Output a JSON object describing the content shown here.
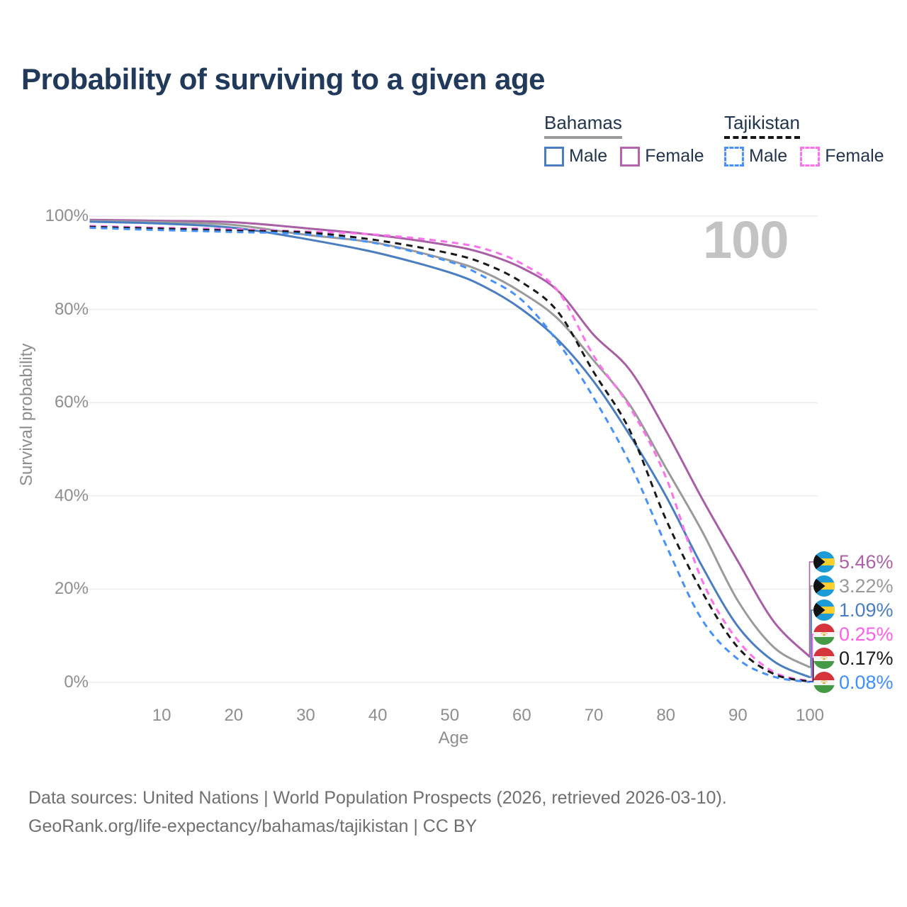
{
  "title": "Probability of surviving to a given age",
  "legend": {
    "groups": [
      {
        "name": "Bahamas",
        "line_style": "solid",
        "underline_color": "#9b9b9b",
        "items": [
          {
            "label": "Male",
            "color": "#4a7ec0"
          },
          {
            "label": "Female",
            "color": "#b264ac"
          }
        ]
      },
      {
        "name": "Tajikistan",
        "line_style": "dashed",
        "underline_color": "#161616",
        "items": [
          {
            "label": "Male",
            "color": "#4791fa"
          },
          {
            "label": "Female",
            "color": "#ff70ee"
          }
        ]
      }
    ]
  },
  "axes": {
    "y_title": "Survival probability",
    "x_title": "Age",
    "y_ticks": [
      {
        "label": "0%",
        "value": 0
      },
      {
        "label": "20%",
        "value": 20
      },
      {
        "label": "40%",
        "value": 40
      },
      {
        "label": "60%",
        "value": 60
      },
      {
        "label": "80%",
        "value": 80
      },
      {
        "label": "100%",
        "value": 100
      }
    ],
    "x_ticks": [
      {
        "label": "10",
        "value": 10
      },
      {
        "label": "20",
        "value": 20
      },
      {
        "label": "30",
        "value": 30
      },
      {
        "label": "40",
        "value": 40
      },
      {
        "label": "50",
        "value": 50
      },
      {
        "label": "60",
        "value": 60
      },
      {
        "label": "70",
        "value": 70
      },
      {
        "label": "80",
        "value": 80
      },
      {
        "label": "90",
        "value": 90
      },
      {
        "label": "100",
        "value": 100
      }
    ]
  },
  "watermark": "100",
  "end_labels": [
    {
      "country": "bahamas",
      "value": "5.46%",
      "color": "#ab62a7"
    },
    {
      "country": "bahamas",
      "value": "3.22%",
      "color": "#9a9a9a"
    },
    {
      "country": "bahamas",
      "value": "1.09%",
      "color": "#4a7ec0"
    },
    {
      "country": "tajikistan",
      "value": "0.25%",
      "color": "#ff5fe9"
    },
    {
      "country": "tajikistan",
      "value": "0.17%",
      "color": "#1a1a1a"
    },
    {
      "country": "tajikistan",
      "value": "0.08%",
      "color": "#3f8efc"
    }
  ],
  "footer": {
    "line1": "Data sources: United Nations | World Population Prospects (2026, retrieved 2026-03-10).",
    "line2": "GeoRank.org/life-expectancy/bahamas/tajikistan | CC BY"
  },
  "chart_data": {
    "type": "line",
    "title": "Probability of surviving to a given age",
    "xlabel": "Age",
    "ylabel": "Survival probability",
    "xlim": [
      0,
      100
    ],
    "ylim": [
      0,
      100
    ],
    "grid": "horizontal",
    "legend_position": "top-right",
    "series": [
      {
        "name": "Bahamas Female",
        "color": "#a95fa5",
        "dash": false,
        "end_value_pct": 5.46,
        "points": [
          [
            0,
            99.2
          ],
          [
            10,
            99.0
          ],
          [
            20,
            98.7
          ],
          [
            30,
            97.4
          ],
          [
            40,
            95.9
          ],
          [
            50,
            93.7
          ],
          [
            55,
            91.9
          ],
          [
            60,
            88.9
          ],
          [
            65,
            84.0
          ],
          [
            70,
            74.5
          ],
          [
            75,
            67.0
          ],
          [
            80,
            54.0
          ],
          [
            85,
            39.5
          ],
          [
            90,
            26.0
          ],
          [
            95,
            13.0
          ],
          [
            100,
            5.46
          ]
        ]
      },
      {
        "name": "Bahamas Both sexes",
        "color": "#9a9a9a",
        "dash": false,
        "end_value_pct": 3.22,
        "points": [
          [
            0,
            99.0
          ],
          [
            10,
            98.7
          ],
          [
            20,
            98.1
          ],
          [
            30,
            96.0
          ],
          [
            40,
            94.2
          ],
          [
            50,
            90.5
          ],
          [
            55,
            87.8
          ],
          [
            60,
            83.6
          ],
          [
            65,
            78.0
          ],
          [
            70,
            69.0
          ],
          [
            75,
            59.5
          ],
          [
            80,
            46.0
          ],
          [
            85,
            32.5
          ],
          [
            90,
            17.5
          ],
          [
            95,
            7.5
          ],
          [
            100,
            3.22
          ]
        ]
      },
      {
        "name": "Bahamas Male",
        "color": "#4a7ec0",
        "dash": false,
        "end_value_pct": 1.09,
        "points": [
          [
            0,
            98.8
          ],
          [
            10,
            98.4
          ],
          [
            20,
            97.5
          ],
          [
            30,
            95.1
          ],
          [
            40,
            92.1
          ],
          [
            50,
            87.9
          ],
          [
            55,
            84.7
          ],
          [
            60,
            80.0
          ],
          [
            65,
            73.5
          ],
          [
            70,
            64.5
          ],
          [
            75,
            53.0
          ],
          [
            80,
            40.0
          ],
          [
            85,
            25.0
          ],
          [
            90,
            12.0
          ],
          [
            95,
            4.5
          ],
          [
            100,
            1.09
          ]
        ]
      },
      {
        "name": "Tajikistan Female",
        "color": "#ff70ee",
        "dash": true,
        "end_value_pct": 0.25,
        "points": [
          [
            0,
            97.9
          ],
          [
            10,
            97.5
          ],
          [
            20,
            97.2
          ],
          [
            30,
            96.7
          ],
          [
            40,
            96.0
          ],
          [
            50,
            94.4
          ],
          [
            55,
            92.9
          ],
          [
            60,
            89.8
          ],
          [
            65,
            84.0
          ],
          [
            70,
            70.0
          ],
          [
            75,
            59.0
          ],
          [
            80,
            44.0
          ],
          [
            85,
            22.0
          ],
          [
            90,
            9.0
          ],
          [
            95,
            2.2
          ],
          [
            100,
            0.25
          ]
        ]
      },
      {
        "name": "Tajikistan Both sexes",
        "color": "#1a1a1a",
        "dash": true,
        "end_value_pct": 0.17,
        "points": [
          [
            0,
            97.7
          ],
          [
            10,
            97.3
          ],
          [
            20,
            96.9
          ],
          [
            30,
            96.5
          ],
          [
            40,
            94.8
          ],
          [
            50,
            92.0
          ],
          [
            55,
            89.7
          ],
          [
            60,
            85.8
          ],
          [
            65,
            79.5
          ],
          [
            70,
            66.5
          ],
          [
            75,
            54.0
          ],
          [
            80,
            35.0
          ],
          [
            85,
            19.5
          ],
          [
            90,
            7.5
          ],
          [
            95,
            1.8
          ],
          [
            100,
            0.17
          ]
        ]
      },
      {
        "name": "Tajikistan Male",
        "color": "#4791fa",
        "dash": true,
        "end_value_pct": 0.08,
        "points": [
          [
            0,
            97.5
          ],
          [
            10,
            97.0
          ],
          [
            20,
            96.6
          ],
          [
            30,
            96.1
          ],
          [
            40,
            94.1
          ],
          [
            50,
            90.2
          ],
          [
            55,
            86.8
          ],
          [
            60,
            82.0
          ],
          [
            65,
            73.0
          ],
          [
            70,
            61.0
          ],
          [
            75,
            47.0
          ],
          [
            80,
            29.5
          ],
          [
            85,
            13.5
          ],
          [
            90,
            5.0
          ],
          [
            95,
            1.2
          ],
          [
            100,
            0.08
          ]
        ]
      }
    ]
  }
}
